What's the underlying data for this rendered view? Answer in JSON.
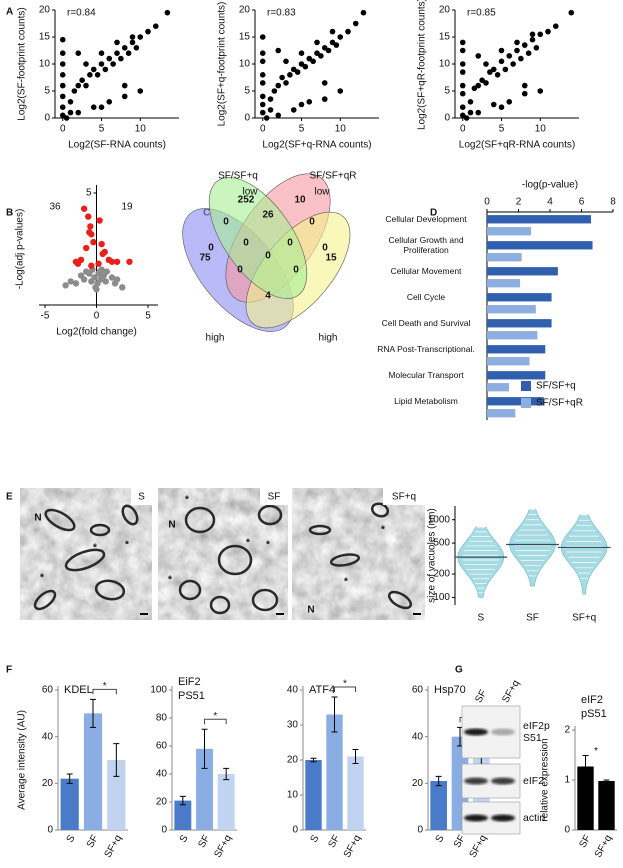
{
  "panel_labels": [
    "A",
    "B",
    "C",
    "D",
    "E",
    "F",
    "G"
  ],
  "chart_data": [
    {
      "type": "scatter",
      "annotation": "r=0.84",
      "xlabel": "Log2(SF-RNA counts)",
      "ylabel": "Log2(SF-footprint counts)",
      "color": "#000000",
      "x": [
        0,
        0,
        0,
        0,
        0,
        0,
        0,
        0,
        1,
        1.5,
        2,
        2.5,
        3,
        3.5,
        4,
        4.5,
        5,
        5.5,
        6,
        6.5,
        7,
        7.5,
        8,
        8.5,
        9,
        9.5,
        10,
        11,
        12,
        2,
        4,
        6,
        8,
        10,
        3,
        5,
        7,
        9,
        13.5,
        0.5,
        1,
        2,
        5,
        8
      ],
      "values": [
        0.5,
        2,
        4,
        6,
        8,
        10,
        12,
        14.5,
        3,
        5,
        6,
        7,
        6,
        8,
        9,
        8,
        10,
        9,
        11,
        10,
        12,
        11,
        13,
        12,
        14,
        13,
        15,
        16,
        17,
        1,
        2,
        3,
        4,
        5,
        10,
        12,
        14,
        15,
        19.5,
        0,
        1,
        12,
        2,
        6
      ],
      "xlim": [
        -1,
        15
      ],
      "xticks": [
        0,
        5,
        10
      ],
      "ylim": [
        0,
        20
      ],
      "yticks": [
        0,
        5,
        10,
        15,
        20
      ]
    },
    {
      "type": "scatter",
      "annotation": "r=0.83",
      "xlabel": "Log2(SF+q-RNA counts)",
      "ylabel": "Log2(SF+q-footprint counts)",
      "color": "#000000",
      "x": [
        0,
        0,
        0,
        0,
        0,
        0,
        0,
        0,
        1,
        1.5,
        2,
        2.5,
        3,
        3.5,
        4,
        4.5,
        5,
        5.5,
        6,
        6.5,
        7,
        7.5,
        8,
        8.5,
        9,
        9.5,
        10,
        11,
        12,
        2,
        4,
        6,
        8,
        10,
        3,
        5,
        7,
        9,
        13,
        0.5,
        1,
        2,
        5,
        8
      ],
      "values": [
        1,
        2.5,
        4,
        6.5,
        8,
        10.5,
        12,
        15,
        3.5,
        5,
        6,
        7.5,
        6.5,
        8,
        9,
        8.5,
        10,
        9.5,
        11,
        10.5,
        12,
        11.5,
        13,
        12.5,
        14,
        13.5,
        15,
        16,
        17.5,
        0.5,
        1.5,
        3,
        3.5,
        5,
        10.5,
        12,
        14,
        16,
        19.5,
        0,
        1.5,
        12.5,
        2.5,
        6.5
      ],
      "xlim": [
        -1,
        15
      ],
      "xticks": [
        0,
        5,
        10
      ],
      "ylim": [
        0,
        20
      ],
      "yticks": [
        0,
        5,
        10,
        15,
        20
      ]
    },
    {
      "type": "scatter",
      "annotation": "r=0.85",
      "xlabel": "Log2(SF+qR-RNA counts)",
      "ylabel": "Log2(SF+qR-footprint counts)",
      "color": "#000000",
      "x": [
        0,
        0,
        0,
        0,
        0,
        0,
        0,
        0,
        1,
        1.5,
        2,
        2.5,
        3,
        3.5,
        4,
        4.5,
        5,
        5.5,
        6,
        6.5,
        7,
        7.5,
        8,
        8.5,
        9,
        9.5,
        10,
        11,
        12,
        2,
        4,
        6,
        8,
        10,
        3,
        5,
        7,
        9,
        14,
        0.5,
        1,
        2,
        5,
        8
      ],
      "values": [
        0.5,
        2,
        4.5,
        6,
        8.5,
        10,
        12.5,
        14,
        3,
        5.5,
        6,
        7,
        6.5,
        8.5,
        9,
        8,
        10.5,
        9,
        11.5,
        10,
        12.5,
        11,
        13.5,
        12,
        14.5,
        13,
        15.5,
        16,
        17,
        1,
        2.5,
        3,
        4.5,
        5,
        10,
        12.5,
        14,
        15.5,
        19.5,
        0,
        1,
        11.5,
        2,
        6
      ],
      "xlim": [
        -1,
        15
      ],
      "xticks": [
        0,
        5,
        10
      ],
      "ylim": [
        0,
        20
      ],
      "yticks": [
        0,
        5,
        10,
        15,
        20
      ]
    },
    {
      "type": "scatter",
      "xlabel": "Log2(fold change)",
      "ylabel": "-Log(adj p-values)",
      "annotations": [
        {
          "text": "36",
          "color": "#e8201a"
        },
        {
          "text": "19",
          "color": "#e8201a"
        }
      ],
      "series": [
        {
          "color": "#8c8c8c",
          "x": [
            -3,
            -2.5,
            -2,
            -1.5,
            -1.2,
            -1,
            -0.7,
            -0.5,
            -0.4,
            -0.2,
            -0.1,
            0,
            0.1,
            0.2,
            0.3,
            0.4,
            0.5,
            0.7,
            0.9,
            1,
            1.5,
            1.8,
            2,
            2.5
          ],
          "values": [
            0.3,
            0.5,
            0.4,
            0.8,
            0.6,
            1.0,
            0.9,
            0.5,
            1.1,
            0.7,
            0.2,
            0.1,
            0.4,
            0.9,
            1.0,
            0.6,
            1.1,
            0.8,
            0.5,
            1.0,
            0.7,
            0.4,
            0.6,
            0.2
          ]
        },
        {
          "color": "#e8201a",
          "x": [
            -1.2,
            -0.8,
            -0.6,
            -0.5,
            -0.3,
            -1,
            -1.5,
            -2,
            0.3,
            0.5,
            0.8,
            1.2,
            2,
            3.2,
            -0.5,
            0.2,
            -0.7,
            0.6,
            -1.8,
            1.5
          ],
          "values": [
            4.2,
            3.8,
            3.3,
            2.9,
            2.5,
            2.2,
            1.6,
            1.5,
            3.6,
            2.4,
            2,
            1.6,
            1.5,
            1.5,
            1.3,
            1.4,
            3.0,
            1.9,
            1.4,
            1.5
          ]
        }
      ],
      "xlim": [
        -5,
        5
      ],
      "xticks": [
        -5,
        0,
        5
      ],
      "ylim": [
        -0.7,
        5
      ],
      "yticks": [
        5
      ]
    },
    {
      "type": "venn",
      "titles": [
        "SF/SF+q",
        "SF/SF+qR"
      ],
      "sets": [
        {
          "label": "high",
          "color": "#8d8cf5",
          "label_color": "#2b48b5"
        },
        {
          "label": "low",
          "color": "#f5f18c",
          "label_color": "#a19b25"
        },
        {
          "label": "low",
          "color": "#a6ef95",
          "label_color": "#2f9e55"
        },
        {
          "label": "high",
          "color": "#f79aa0",
          "label_color": "#e0386b"
        }
      ],
      "counts": [
        75,
        252,
        10,
        15,
        26,
        0,
        0,
        0,
        0,
        0,
        0,
        0,
        0,
        0,
        4
      ]
    },
    {
      "type": "bar",
      "orientation": "horizontal",
      "xlabel": "-log(p-value)",
      "categories": [
        "Cellular Development",
        "Cellular Growth and Proliferation",
        "Cellular Movement",
        "Cell Cycle",
        "Cell Death and Survival",
        "RNA Post-Transcriptional.",
        "Molecular Transport",
        "Lipid Metabolism"
      ],
      "series": [
        {
          "name": "SF/SF+q",
          "color": "#2f5fad",
          "values": [
            6.6,
            6.7,
            4.5,
            4.1,
            4.1,
            3.7,
            3.7,
            3.6
          ]
        },
        {
          "name": "SF/SF+qR",
          "color": "#8eaee0",
          "values": [
            2.8,
            2.2,
            2.1,
            3.1,
            3.2,
            2.7,
            1.4,
            1.8
          ]
        }
      ],
      "xlim": [
        0,
        8
      ],
      "xticks": [
        0,
        2,
        4,
        6,
        8
      ],
      "legend": "lower right"
    },
    {
      "type": "violin",
      "ylabel": "size of vacuoles (nm)",
      "categories": [
        "S",
        "SF",
        "SF+q"
      ],
      "median": [
        330,
        480,
        440
      ],
      "min": [
        100,
        140,
        110
      ],
      "max": [
        800,
        1350,
        1150
      ],
      "color": "#a6dbe3",
      "log_scale": true,
      "ylim": [
        80,
        1500
      ],
      "yticks": [
        100,
        200,
        500,
        1000
      ]
    },
    {
      "type": "bar",
      "title": "KDEL",
      "ylabel": "Average intensity (AU)",
      "categories": [
        "S",
        "SF",
        "SF+q"
      ],
      "values": [
        22,
        50,
        30
      ],
      "errors": [
        2,
        6,
        7
      ],
      "colors": [
        "#4a7bc8",
        "#8aaee3",
        "#c0d3f0"
      ],
      "ylim": [
        0,
        60
      ],
      "yticks": [
        0,
        20,
        40,
        60
      ],
      "significance": "*",
      "bracket": true
    },
    {
      "type": "bar",
      "title": "EiF2 PS51",
      "categories": [
        "S",
        "SF",
        "SF+q"
      ],
      "values": [
        21,
        58,
        40
      ],
      "errors": [
        3,
        14,
        4
      ],
      "colors": [
        "#4a7bc8",
        "#8aaee3",
        "#c0d3f0"
      ],
      "ylim": [
        0,
        100
      ],
      "yticks": [
        0,
        20,
        40,
        60,
        80,
        100
      ],
      "significance": "*",
      "bracket": true
    },
    {
      "type": "bar",
      "title": "ATF4",
      "categories": [
        "S",
        "SF",
        "SF+q"
      ],
      "values": [
        20,
        33,
        21
      ],
      "errors": [
        0.5,
        5,
        2
      ],
      "colors": [
        "#4a7bc8",
        "#8aaee3",
        "#c0d3f0"
      ],
      "ylim": [
        0,
        40
      ],
      "yticks": [
        0,
        10,
        20,
        30,
        40
      ],
      "significance": "*",
      "bracket": true
    },
    {
      "type": "bar",
      "title": "Hsp70",
      "categories": [
        "S",
        "SF",
        "SF+q"
      ],
      "values": [
        21,
        40,
        31
      ],
      "errors": [
        2,
        4,
        3
      ],
      "colors": [
        "#4a7bc8",
        "#8aaee3",
        "#c0d3f0"
      ],
      "ylim": [
        0,
        60
      ],
      "yticks": [
        0,
        20,
        40,
        60
      ],
      "significance": "*",
      "bracket": true
    },
    {
      "type": "bar",
      "title": "eIF2 pS51",
      "ylabel": "relative expression",
      "categories": [
        "SF",
        "SF+q"
      ],
      "values": [
        1.27,
        0.98
      ],
      "errors": [
        0.22,
        0.02
      ],
      "colors": [
        "#000000",
        "#000000"
      ],
      "ylim": [
        0,
        2
      ],
      "yticks": [
        0,
        1,
        2
      ],
      "significance": "*",
      "bracket": false
    }
  ],
  "micrographs": [
    {
      "label": "S",
      "annotations": [
        "N",
        "*",
        "*",
        "*"
      ]
    },
    {
      "label": "SF",
      "annotations": [
        "N",
        "*",
        "*",
        "*",
        "*"
      ]
    },
    {
      "label": "SF+q",
      "annotations": [
        "*",
        "*",
        "N"
      ]
    }
  ],
  "blot": {
    "lanes": [
      "SF",
      "SF+q"
    ],
    "bands": [
      "eIF2p S51",
      "eIF2",
      "actin"
    ]
  }
}
